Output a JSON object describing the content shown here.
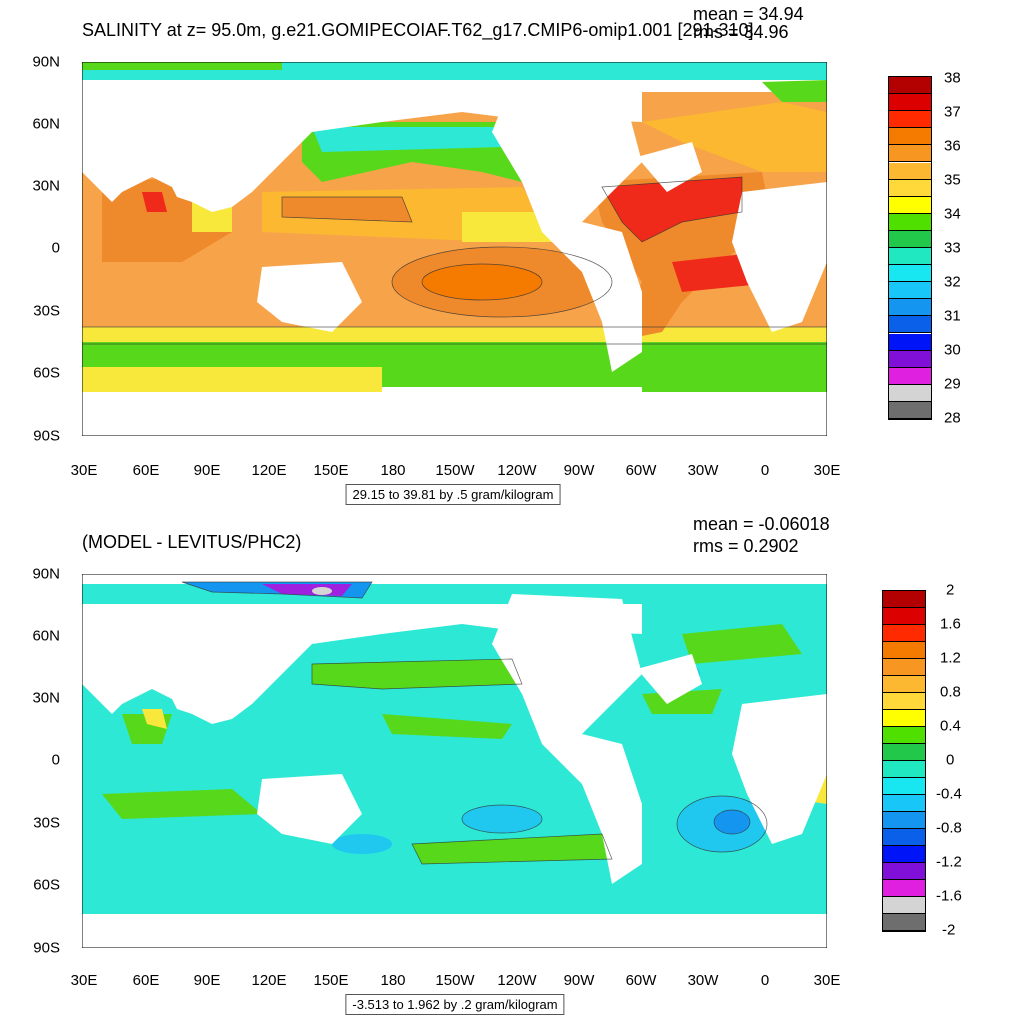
{
  "top": {
    "title": "SALINITY at z=  95.0m, g.e21.GOMIPECOIAF.T62_g17.CMIP6-omip1.001 [291-310]",
    "mean_text": "mean = 34.94",
    "rms_text": "rms = 34.96",
    "range_text": "29.15 to 39.81 by .5 gram/kilogram",
    "y_labels": [
      "90N",
      "60N",
      "30N",
      "0",
      "30S",
      "60S",
      "90S"
    ],
    "x_labels": [
      "30E",
      "60E",
      "90E",
      "120E",
      "150E",
      "180",
      "150W",
      "120W",
      "90W",
      "60W",
      "30W",
      "0",
      "30E"
    ],
    "colorbar": {
      "colors": [
        "#b30000",
        "#dd0000",
        "#ff2a00",
        "#f47a00",
        "#f79620",
        "#fbb830",
        "#ffd83a",
        "#ffff00",
        "#50e000",
        "#22c84a",
        "#20e8c0",
        "#18e6f0",
        "#18c6f8",
        "#1496f0",
        "#0a60e8",
        "#0014f8",
        "#8010d8",
        "#e020e0",
        "#d4d4d4",
        "#6e6e6e"
      ],
      "labels": [
        "38",
        "37",
        "36",
        "35",
        "34",
        "33",
        "32",
        "31",
        "30",
        "29",
        "28"
      ]
    },
    "map_colors": {
      "base": "#f7a34a",
      "dark": "#ef8a2c",
      "red": "#ef2a1a",
      "yellow": "#f9e83c",
      "green": "#58d81a",
      "cyan": "#2ce8d4",
      "land": "#ffffff"
    }
  },
  "bottom": {
    "title": "(MODEL - LEVITUS/PHC2)",
    "mean_text": "mean = -0.06018",
    "rms_text": "rms = 0.2902",
    "range_text": "-3.513 to 1.962 by .2 gram/kilogram",
    "y_labels": [
      "90N",
      "60N",
      "30N",
      "0",
      "30S",
      "60S",
      "90S"
    ],
    "x_labels": [
      "30E",
      "60E",
      "90E",
      "120E",
      "150E",
      "180",
      "150W",
      "120W",
      "90W",
      "60W",
      "30W",
      "0",
      "30E"
    ],
    "colorbar": {
      "colors": [
        "#b30000",
        "#dd0000",
        "#ff2a00",
        "#f47a00",
        "#f79620",
        "#fbb830",
        "#ffd83a",
        "#ffff00",
        "#50e000",
        "#22c84a",
        "#20e8c0",
        "#18e6f0",
        "#18c6f8",
        "#1496f0",
        "#0a60e8",
        "#0014f8",
        "#8010d8",
        "#e020e0",
        "#d4d4d4",
        "#6e6e6e"
      ],
      "labels": [
        "2",
        "1.6",
        "1.2",
        "0.8",
        "0.4",
        "0",
        "-0.4",
        "-0.8",
        "-1.2",
        "-1.6",
        "-2"
      ]
    },
    "map_colors": {
      "base": "#2ce8d4",
      "green": "#58d81a",
      "lightblue": "#20c8f0",
      "blue": "#1496f0",
      "yellow": "#f9e83c",
      "purple": "#a020e0",
      "land": "#ffffff"
    }
  }
}
